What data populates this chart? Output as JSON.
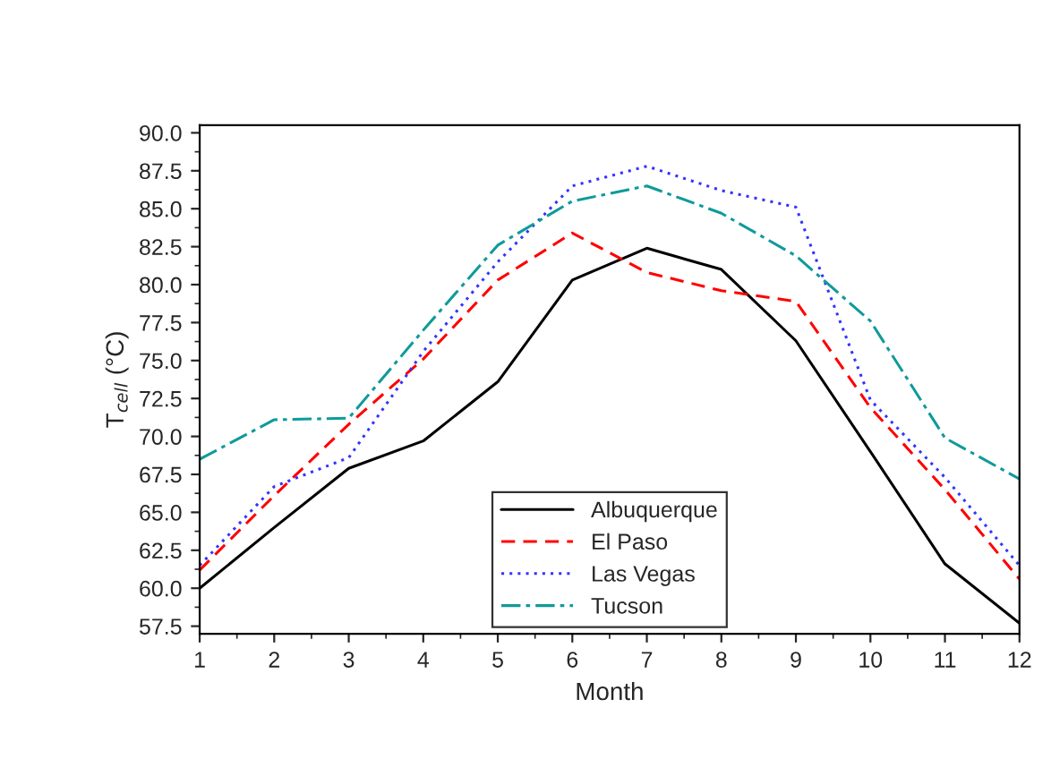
{
  "chart_data": {
    "type": "line",
    "xlabel": "Month",
    "ylabel": "T$_{cell}$ (°C)",
    "x": [
      1,
      2,
      3,
      4,
      5,
      6,
      7,
      8,
      9,
      10,
      11,
      12
    ],
    "series": [
      {
        "name": "Albuquerque",
        "color": "#000000",
        "line_style": "solid",
        "values": [
          60.0,
          64.0,
          67.9,
          69.7,
          73.6,
          80.3,
          82.4,
          81.0,
          76.3,
          69.0,
          61.6,
          57.7
        ]
      },
      {
        "name": "El Paso",
        "color": "#ff0000",
        "line_style": "dashed",
        "values": [
          61.2,
          66.1,
          70.8,
          75.1,
          80.3,
          83.4,
          80.8,
          79.6,
          78.9,
          71.9,
          66.5,
          60.6
        ]
      },
      {
        "name": "Las Vegas",
        "color": "#3333ff",
        "line_style": "dotted",
        "values": [
          61.5,
          66.7,
          68.6,
          75.6,
          81.5,
          86.5,
          87.8,
          86.2,
          85.1,
          72.4,
          67.3,
          61.5
        ]
      },
      {
        "name": "Tucson",
        "color": "#109a9a",
        "line_style": "dashdot",
        "values": [
          68.5,
          71.1,
          71.2,
          77.0,
          82.6,
          85.5,
          86.5,
          84.7,
          81.9,
          77.6,
          69.9,
          67.2
        ]
      }
    ],
    "xlim": [
      1,
      12
    ],
    "xticks": [
      1,
      2,
      3,
      4,
      5,
      6,
      7,
      8,
      9,
      10,
      11,
      12
    ],
    "ylim": [
      57.0,
      90.5
    ],
    "yticks": [
      {
        "value": 57.5,
        "label": "57.5"
      },
      {
        "value": 60,
        "label": "60.0"
      },
      {
        "value": 62.5,
        "label": "62.5"
      },
      {
        "value": 65,
        "label": "65.0"
      },
      {
        "value": 67.5,
        "label": "67.5"
      },
      {
        "value": 70,
        "label": "70.0"
      },
      {
        "value": 72.5,
        "label": "72.5"
      },
      {
        "value": 75,
        "label": "75.0"
      },
      {
        "value": 77.5,
        "label": "77.5"
      },
      {
        "value": 80,
        "label": "80.0"
      },
      {
        "value": 82.5,
        "label": "82.5"
      },
      {
        "value": 85,
        "label": "85.0"
      },
      {
        "value": 87.5,
        "label": "87.5"
      },
      {
        "value": 90,
        "label": "90.0"
      }
    ],
    "grid": false,
    "legend": "bottom",
    "marker": "none"
  }
}
